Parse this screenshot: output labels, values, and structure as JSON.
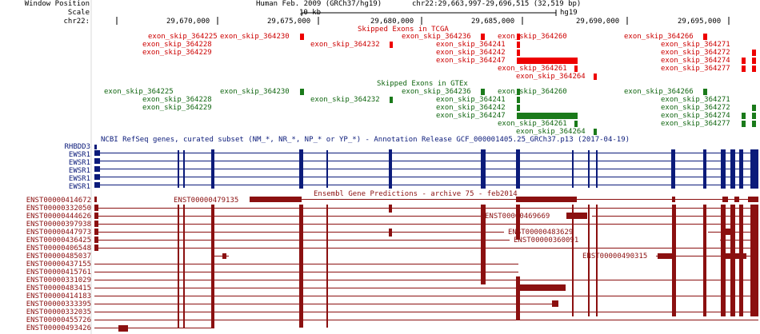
{
  "header": {
    "window_position_label": "Window Position",
    "scale_label": "Scale",
    "chrom_label": "chr22:",
    "assembly_title": "Human Feb. 2009 (GRCh37/hg19)",
    "position_text": "chr22:29,663,997-29,696,515 (32,519 bp)",
    "scale_value": "10 kb",
    "scale_assembly": "hg19",
    "ticks": [
      "29,670,000",
      "29,675,000",
      "29,680,000",
      "29,685,000",
      "29,690,000",
      "29,695,000"
    ]
  },
  "tracks": {
    "tcga": {
      "title": "Skipped Exons in TCGA",
      "color": "#dd0000",
      "items": [
        {
          "label": "exon_skip_364225"
        },
        {
          "label": "exon_skip_364230"
        },
        {
          "label": "exon_skip_364236"
        },
        {
          "label": "exon_skip_364260"
        },
        {
          "label": "exon_skip_364266"
        },
        {
          "label": "exon_skip_364228"
        },
        {
          "label": "exon_skip_364232"
        },
        {
          "label": "exon_skip_364241"
        },
        {
          "label": "exon_skip_364271"
        },
        {
          "label": "exon_skip_364229"
        },
        {
          "label": "exon_skip_364242"
        },
        {
          "label": "exon_skip_364272"
        },
        {
          "label": "exon_skip_364247"
        },
        {
          "label": "exon_skip_364274"
        },
        {
          "label": "exon_skip_364261"
        },
        {
          "label": "exon_skip_364277"
        },
        {
          "label": "exon_skip_364264"
        }
      ]
    },
    "gtex": {
      "title": "Skipped Exons in GTEx",
      "color": "#116611",
      "items": [
        {
          "label": "exon_skip_364225"
        },
        {
          "label": "exon_skip_364230"
        },
        {
          "label": "exon_skip_364236"
        },
        {
          "label": "exon_skip_364260"
        },
        {
          "label": "exon_skip_364266"
        },
        {
          "label": "exon_skip_364228"
        },
        {
          "label": "exon_skip_364232"
        },
        {
          "label": "exon_skip_364241"
        },
        {
          "label": "exon_skip_364271"
        },
        {
          "label": "exon_skip_364229"
        },
        {
          "label": "exon_skip_364242"
        },
        {
          "label": "exon_skip_364272"
        },
        {
          "label": "exon_skip_364247"
        },
        {
          "label": "exon_skip_364274"
        },
        {
          "label": "exon_skip_364261"
        },
        {
          "label": "exon_skip_364277"
        },
        {
          "label": "exon_skip_364264"
        }
      ]
    },
    "refseq": {
      "title": "NCBI RefSeq genes, curated subset (NM_*, NR_*, NP_* or YP_*) - Annotation Release GCF_000001405.25_GRCh37.p13 (2017-04-19)",
      "color": "#0b1b7a",
      "genes": [
        "RHBDD3",
        "EWSR1",
        "EWSR1",
        "EWSR1",
        "EWSR1",
        "EWSR1"
      ]
    },
    "ensembl": {
      "title": "Ensembl Gene Predictions - archive 75 - feb2014",
      "color": "#8b1010",
      "transcripts": [
        "ENST00000414672",
        "ENST00000332050",
        "ENST00000444626",
        "ENST00000397938",
        "ENST00000447973",
        "ENST00000436425",
        "ENST00000406548",
        "ENST00000485037",
        "ENST00000437155",
        "ENST00000415761",
        "ENST00000331029",
        "ENST00000483415",
        "ENST00000414183",
        "ENST00000333395",
        "ENST00000332035",
        "ENST00000455726",
        "ENST00000493426"
      ],
      "inline_labels": [
        "ENST00000479135",
        "ENST00000469669",
        "ENST00000483629",
        "ENST00000360091",
        "ENST00000490315"
      ]
    }
  }
}
